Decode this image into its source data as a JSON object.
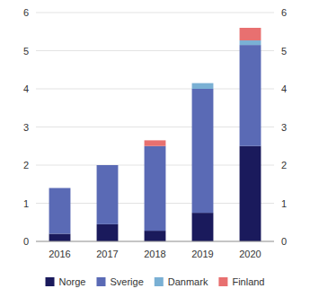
{
  "chart_data": {
    "type": "bar",
    "stacked": true,
    "categories": [
      "2016",
      "2017",
      "2018",
      "2019",
      "2020"
    ],
    "series": [
      {
        "name": "Norge",
        "color": "#1a1a5c",
        "values": [
          0.2,
          0.45,
          0.28,
          0.75,
          2.5
        ]
      },
      {
        "name": "Sverige",
        "color": "#5a6ab5",
        "values": [
          1.2,
          1.55,
          2.22,
          3.25,
          2.65
        ]
      },
      {
        "name": "Danmark",
        "color": "#7ab0d4",
        "values": [
          0.0,
          0.0,
          0.0,
          0.15,
          0.12
        ]
      },
      {
        "name": "Finland",
        "color": "#e87070",
        "values": [
          0.0,
          0.0,
          0.15,
          0.0,
          0.33
        ]
      }
    ],
    "ylim": [
      0,
      6
    ],
    "yticks": [
      0,
      1,
      2,
      3,
      4,
      5,
      6
    ],
    "y2lim": [
      0,
      6
    ],
    "y2ticks": [
      0,
      1,
      2,
      3,
      4,
      5,
      6
    ],
    "grid": true,
    "legend": "bottom"
  }
}
